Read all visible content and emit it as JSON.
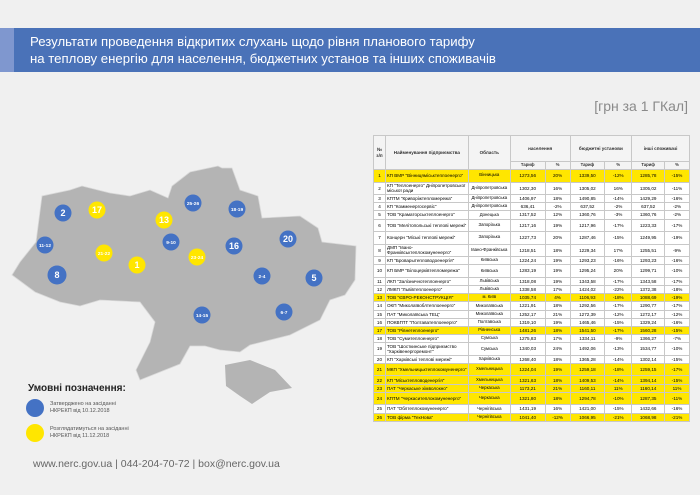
{
  "header": {
    "title_line1": "Результати проведення відкритих слухань щодо рівня планового тарифу",
    "title_line2": "на теплову енергію для населення, бюджетних установ та інших споживачів",
    "unit": "[грн за 1 ГКал]"
  },
  "colors": {
    "band": "#4a72b8",
    "approved": "#4472c4",
    "pending": "#ffe600",
    "map": "#b4b4b4"
  },
  "map": {
    "markers": [
      {
        "label": "2",
        "status": "approved"
      },
      {
        "label": "17",
        "status": "pending"
      },
      {
        "label": "11-12",
        "status": "approved"
      },
      {
        "label": "8",
        "status": "approved"
      },
      {
        "label": "21-22",
        "status": "pending"
      },
      {
        "label": "1",
        "status": "pending"
      },
      {
        "label": "13",
        "status": "pending"
      },
      {
        "label": "9-10",
        "status": "approved"
      },
      {
        "label": "25-26",
        "status": "approved"
      },
      {
        "label": "18-19",
        "status": "approved"
      },
      {
        "label": "23-24",
        "status": "pending"
      },
      {
        "label": "16",
        "status": "approved"
      },
      {
        "label": "20",
        "status": "approved"
      },
      {
        "label": "2-4",
        "status": "approved"
      },
      {
        "label": "5",
        "status": "approved"
      },
      {
        "label": "6-7",
        "status": "approved"
      },
      {
        "label": "14-15",
        "status": "approved"
      }
    ]
  },
  "legend": {
    "title": "Умовні позначення:",
    "approved": "Затверджено на засіданні НКРЕКП від 10.12.2018",
    "pending": "Розглядатимуться на засіданні НКРЕКП від 11.12.2018"
  },
  "table": {
    "headers": {
      "num": "№ з/п",
      "name": "Найменування підприємства",
      "region": "Область",
      "pop": "населення",
      "budget": "бюджетні установи",
      "other": "інші споживачі",
      "tariff": "Тариф",
      "pct": "%"
    },
    "rows": [
      [
        "1",
        "КП ВМР \"Вінницяміськтеплоенерго\"",
        "Вінницька",
        "1273,56",
        "20%",
        "1339,50",
        "-12%",
        "1285,78",
        "-15%",
        true
      ],
      [
        "2",
        "КП \"Теплоенерго\" Дніпропетровської міської ради",
        "Дніпропетровська",
        "1302,30",
        "16%",
        "1305,02",
        "16%",
        "1305,02",
        "-11%",
        false
      ],
      [
        "3",
        "КПТМ \"Криворіжтепломережа\"",
        "Дніпропетровська",
        "1406,97",
        "18%",
        "1490,85",
        "-14%",
        "1429,29",
        "-16%",
        false
      ],
      [
        "4",
        "КП \"Комменергосервіс\"",
        "Дніпропетровська",
        "636,41",
        "-2%",
        "637,52",
        "-2%",
        "637,52",
        "-2%",
        false
      ],
      [
        "5",
        "ТОВ \"Краматорськтеплоенерго\"",
        "Донецька",
        "1317,52",
        "12%",
        "1360,76",
        "-3%",
        "1360,76",
        "-2%",
        false
      ],
      [
        "6",
        "ТОВ \"Мелітопольські теплові мережі\"",
        "Запорізька",
        "1217,16",
        "19%",
        "1217,96",
        "-17%",
        "1223,33",
        "-17%",
        false
      ],
      [
        "7",
        "Концерн \"Міські теплові мережі\"",
        "Запорізька",
        "1227,73",
        "20%",
        "1287,46",
        "-15%",
        "1249,95",
        "-19%",
        false
      ],
      [
        "8",
        "ДМП \"Івано-Франківськтеплокомуненерго\"",
        "Івано-Франківська",
        "1218,51",
        "18%",
        "1229,34",
        "17%",
        "1255,51",
        "-9%",
        false
      ],
      [
        "9",
        "КП \"Броварытепловодоенергія\"",
        "Київська",
        "1224,24",
        "19%",
        "1293,23",
        "-16%",
        "1293,23",
        "-16%",
        false
      ],
      [
        "10",
        "КП БМР \"Білоцерківтепломережа\"",
        "Київська",
        "1283,19",
        "19%",
        "1295,24",
        "20%",
        "1299,71",
        "-10%",
        false
      ],
      [
        "11",
        "ЛКП \"Залізничнотеплоенерго\"",
        "Львівська",
        "1318,08",
        "19%",
        "1343,58",
        "-17%",
        "1343,58",
        "-17%",
        false
      ],
      [
        "12",
        "ЛМКП \"Львівтеплоенерго\"",
        "Львівська",
        "1338,58",
        "17%",
        "1424,02",
        "-22%",
        "1372,38",
        "-18%",
        false
      ],
      [
        "13",
        "ТОВ \"ЄВРО-РЕКОНСТРУКЦІЯ\"",
        "м. Київ",
        "1035,74",
        "4%",
        "1106,93",
        "-18%",
        "1088,69",
        "-19%",
        true
      ],
      [
        "14",
        "ОКП \"Миколаївоблтеплоенерго\"",
        "Миколаївська",
        "1221,91",
        "18%",
        "1292,56",
        "-17%",
        "1290,77",
        "-17%",
        false
      ],
      [
        "15",
        "ПАТ \"Миколаївська ТЕЦ\"",
        "Миколаївська",
        "1252,17",
        "21%",
        "1272,39",
        "-12%",
        "1272,17",
        "-12%",
        false
      ],
      [
        "16",
        "ПОКВПТГ \"Полтаватеплоенерго\"",
        "Полтавська",
        "1319,10",
        "19%",
        "1465,46",
        "-15%",
        "1329,24",
        "-16%",
        false
      ],
      [
        "17",
        "ТОВ \"Рівнетеплоенерго\"",
        "Рівненська",
        "1481,26",
        "18%",
        "1541,50",
        "-17%",
        "1560,28",
        "-15%",
        true
      ],
      [
        "18",
        "ТОВ \"Сумитеплоенерго\"",
        "Сумська",
        "1275,83",
        "17%",
        "1334,11",
        "-9%",
        "1366,27",
        "-7%",
        false
      ],
      [
        "19",
        "ТОВ \"Шосткинське підприємство \"Харківенергоремонт\"",
        "Сумська",
        "1340,03",
        "24%",
        "1492,06",
        "-13%",
        "1534,77",
        "-10%",
        false
      ],
      [
        "20",
        "КП \"Харківські теплові мережі\"",
        "Харківська",
        "1268,40",
        "18%",
        "1365,28",
        "-14%",
        "1302,14",
        "-15%",
        false
      ],
      [
        "21",
        "МКП \"Хмельницьктеплокомуненерго\"",
        "Хмельницька",
        "1224,04",
        "19%",
        "1259,18",
        "-18%",
        "1259,15",
        "-17%",
        true
      ],
      [
        "22",
        "КП \"Міськтепловоденергія\"",
        "Хмельницька",
        "1321,63",
        "18%",
        "1409,53",
        "-14%",
        "1394,14",
        "-15%",
        true
      ],
      [
        "23",
        "ПАТ \"Черкаське хімволокно\"",
        "Черкаська",
        "1173,21",
        "21%",
        "1160,11",
        "11%",
        "1160,14",
        "11%",
        true
      ],
      [
        "24",
        "КПТМ \"Черкаситеплокомуненерго\"",
        "Черкаська",
        "1321,80",
        "18%",
        "1294,78",
        "-10%",
        "1287,35",
        "-11%",
        true
      ],
      [
        "25",
        "ПАТ \"Облтеплокомуненерго\"",
        "Чернігівська",
        "1431,19",
        "16%",
        "1421,00",
        "-15%",
        "1432,66",
        "-16%",
        false
      ],
      [
        "26",
        "ТОВ фірма \"ТехНова\"",
        "Чернігівська",
        "1041,40",
        "-12%",
        "1066,95",
        "-21%",
        "1068,98",
        "-21%",
        true
      ]
    ]
  },
  "footer": {
    "text": "www.nerc.gov.ua | 044-204-70-72 | box@nerc.gov.ua"
  }
}
